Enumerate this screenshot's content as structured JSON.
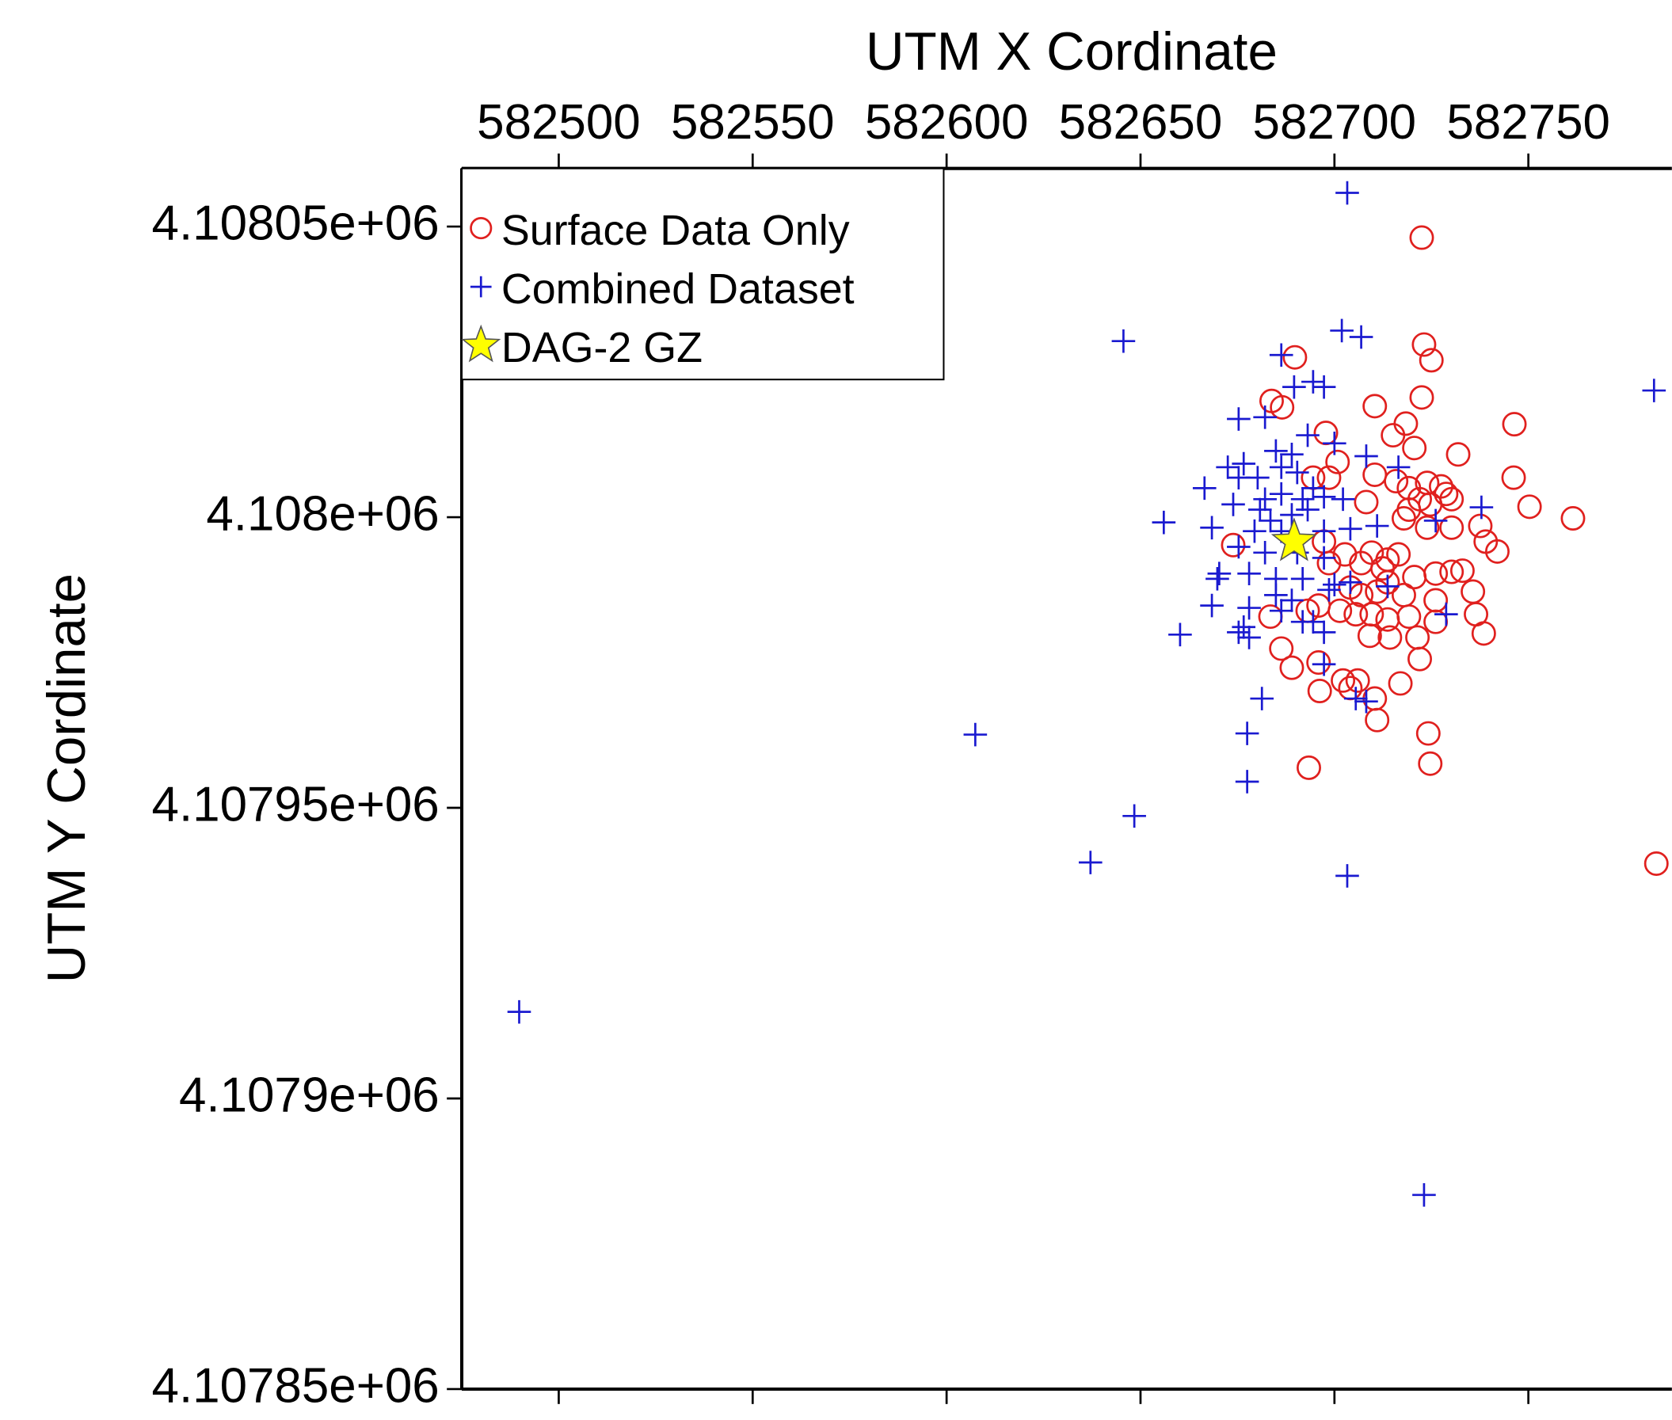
{
  "chart_data": {
    "type": "scatter",
    "xlabel": "UTM X Cordinate",
    "ylabel": "UTM Y Cordinate",
    "xlim": [
      582475,
      582787
    ],
    "ylim": [
      4107850,
      4108060
    ],
    "xticks": [
      582500,
      582550,
      582600,
      582650,
      582700,
      582750
    ],
    "yticks": [
      {
        "value": 4108050,
        "label": "4.10805e+06"
      },
      {
        "value": 4108000,
        "label": "4.108e+06"
      },
      {
        "value": 4107950,
        "label": "4.10795e+06"
      },
      {
        "value": 4107900,
        "label": "4.1079e+06"
      },
      {
        "value": 4107850,
        "label": "4.10785e+06"
      }
    ],
    "legend": "upper left",
    "series": [
      {
        "name": "Surface Data Only",
        "color": "#e0201e",
        "marker": "circle",
        "x": [
          582722.5,
          582689.8,
          582723.1,
          582725.0,
          582683.8,
          582686.5,
          582710.4,
          582722.5,
          582718.4,
          582715.1,
          582746.4,
          582697.8,
          582720.6,
          582731.9,
          582700.8,
          582694.5,
          582698.6,
          582710.4,
          582715.9,
          582719.2,
          582723.9,
          582727.5,
          582728.8,
          582730.2,
          582746.2,
          582750.3,
          582761.5,
          582708.2,
          582719.2,
          582722.0,
          582724.7,
          582717.9,
          582723.9,
          582730.2,
          582737.6,
          582739.0,
          582742.0,
          582673.9,
          582697.3,
          582702.7,
          582709.6,
          582713.7,
          582716.5,
          582706.9,
          582712.4,
          582698.6,
          582720.6,
          582726.1,
          582730.2,
          582733.0,
          582713.7,
          582704.1,
          582706.9,
          582711.0,
          582717.9,
          582726.1,
          582735.7,
          582695.9,
          582693.1,
          582701.4,
          582705.5,
          582709.6,
          582713.7,
          582719.2,
          582726.1,
          582736.5,
          582683.5,
          582709.1,
          582714.3,
          582721.4,
          582738.5,
          582686.3,
          582695.9,
          582689.0,
          582722.0,
          582702.2,
          582706.0,
          582717.0,
          582696.2,
          582704.1,
          582710.4,
          582711.0,
          582724.2,
          582693.4,
          582724.7,
          582783.0
        ],
        "y": [
          4108048.1,
          4108027.5,
          4108029.7,
          4108027.0,
          4108020.0,
          4108018.9,
          4108019.1,
          4108020.6,
          4108016.1,
          4108014.1,
          4108016.0,
          4108014.5,
          4108011.9,
          4108010.8,
          4108009.5,
          4108006.8,
          4108006.8,
          4108007.3,
          4108006.2,
          4108005.0,
          4108005.9,
          4108005.3,
          4108004.0,
          4108003.1,
          4108006.8,
          4108001.8,
          4107999.8,
          4108002.6,
          4108001.3,
          4108003.1,
          4108002.2,
          4107999.8,
          4107998.2,
          4107998.2,
          4107998.5,
          4107995.8,
          4107994.1,
          4107995.2,
          4107995.8,
          4107993.6,
          4107993.9,
          4107992.7,
          4107993.6,
          4107992.1,
          4107991.2,
          4107992.1,
          4107989.7,
          4107990.3,
          4107990.6,
          4107990.8,
          4107988.8,
          4107987.9,
          4107986.6,
          4107987.2,
          4107986.6,
          4107985.7,
          4107987.2,
          4107984.8,
          4107983.9,
          4107983.9,
          4107983.3,
          4107983.3,
          4107982.4,
          4107982.9,
          4107982.0,
          4107983.3,
          4107982.9,
          4107979.6,
          4107979.3,
          4107979.3,
          4107980.0,
          4107977.4,
          4107975.0,
          4107974.1,
          4107975.6,
          4107971.9,
          4107971.9,
          4107971.4,
          4107970.1,
          4107970.6,
          4107968.8,
          4107965.1,
          4107962.8,
          4107956.9,
          4107957.6,
          4107940.4
        ]
      },
      {
        "name": "Combined Dataset",
        "color": "#1a1ad0",
        "marker": "plus",
        "x": [
          582703.3,
          582645.6,
          582701.9,
          582706.9,
          582686.3,
          582689.6,
          582694.5,
          582697.3,
          582782.4,
          582675.3,
          582682.1,
          582693.1,
          582684.9,
          582689.0,
          582672.5,
          582676.6,
          582675.3,
          582680.2,
          582686.3,
          582690.4,
          582694.5,
          582700.0,
          582708.2,
          582716.5,
          582666.5,
          582682.1,
          582686.3,
          582691.8,
          582697.3,
          582702.2,
          582673.9,
          582680.8,
          582683.5,
          582689.0,
          582693.1,
          582656.0,
          582668.4,
          582679.4,
          582686.3,
          582697.3,
          582704.1,
          582711.0,
          582726.1,
          582737.9,
          582675.3,
          582682.1,
          582690.4,
          582697.3,
          582670.3,
          582678.0,
          582684.9,
          582691.8,
          582700.0,
          582704.1,
          582669.8,
          582684.9,
          582689.0,
          582698.6,
          582713.7,
          582728.8,
          582668.4,
          582678.0,
          582686.3,
          582694.5,
          582676.6,
          582660.2,
          582675.3,
          582678.0,
          582691.8,
          582697.3,
          582697.3,
          582705.5,
          582708.2,
          582681.3,
          582677.5,
          582607.4,
          582677.5,
          582648.4,
          582637.1,
          582703.3,
          582489.8,
          582723.1
        ],
        "y": [
          4108055.8,
          4108030.3,
          4108032.1,
          4108031.0,
          4108027.9,
          4108022.4,
          4108023.3,
          4108022.4,
          4108021.8,
          4108016.9,
          4108017.2,
          4108014.1,
          4108011.4,
          4108010.8,
          4108008.6,
          4108009.2,
          4108006.8,
          4108006.8,
          4108008.6,
          4108007.7,
          4108005.0,
          4108012.7,
          4108010.5,
          4108008.6,
          4108005.0,
          4108003.1,
          4108004.0,
          4108003.1,
          4108003.5,
          4108003.1,
          4108002.2,
          4108001.3,
          4107999.4,
          4108000.4,
          4108001.3,
          4107999.1,
          4107998.2,
          4107997.6,
          4107997.6,
          4107997.6,
          4107998.0,
          4107998.5,
          4107999.4,
          4108001.7,
          4107994.9,
          4107993.9,
          4107993.9,
          4107993.0,
          4107990.3,
          4107990.3,
          4107989.4,
          4107989.4,
          4107988.4,
          4107988.8,
          4107989.4,
          4107986.6,
          4107985.7,
          4107987.5,
          4107988.1,
          4107983.3,
          4107984.8,
          4107984.4,
          4107983.9,
          4107982.0,
          4107981.1,
          4107979.8,
          4107980.2,
          4107979.3,
          4107982.0,
          4107980.2,
          4107974.7,
          4107968.8,
          4107968.3,
          4107968.8,
          4107962.8,
          4107962.6,
          4107954.5,
          4107948.6,
          4107940.6,
          4107938.3,
          4107914.9,
          4107883.4
        ]
      },
      {
        "name": "DAG-2 GZ",
        "color": "#ffff00",
        "marker": "star",
        "x": [
          582689.6
        ],
        "y": [
          4107995.8
        ]
      }
    ]
  }
}
